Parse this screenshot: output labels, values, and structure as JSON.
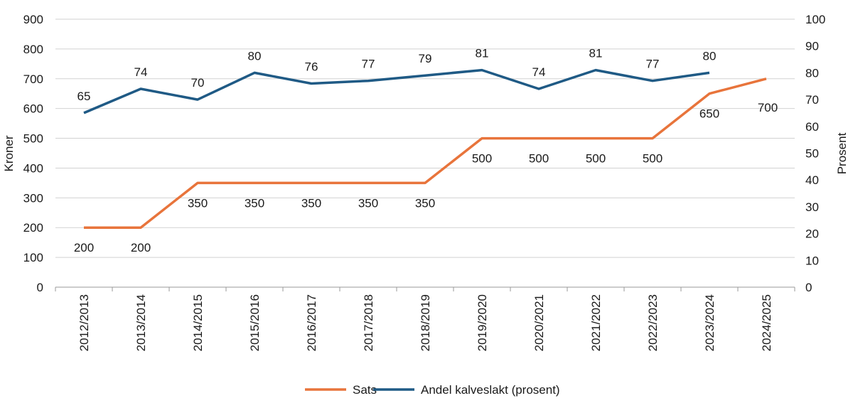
{
  "chart_data": {
    "type": "line",
    "title": "",
    "xlabel": "",
    "ylabel": "Kroner",
    "y2label": "Prosent",
    "ylim": [
      0,
      900
    ],
    "y2lim": [
      0,
      100
    ],
    "yticks": [
      "0",
      "100",
      "200",
      "300",
      "400",
      "500",
      "600",
      "700",
      "800",
      "900"
    ],
    "y2ticks": [
      "0",
      "10",
      "20",
      "30",
      "40",
      "50",
      "60",
      "70",
      "80",
      "90",
      "100"
    ],
    "grid": true,
    "legend_position": "bottom-center",
    "categories": [
      "2012/2013",
      "2013/2014",
      "2014/2015",
      "2015/2016",
      "2016/2017",
      "2017/2018",
      "2018/2019",
      "2019/2020",
      "2020/2021",
      "2021/2022",
      "2022/2023",
      "2023/2024",
      "2024/2025"
    ],
    "series": [
      {
        "name": "Sats",
        "axis": "left",
        "color": "#e8743b",
        "values": [
          200,
          200,
          350,
          350,
          350,
          350,
          350,
          500,
          500,
          500,
          500,
          650,
          700
        ],
        "labels": [
          "200",
          "200",
          "350",
          "350",
          "350",
          "350",
          "350",
          "500",
          "500",
          "500",
          "500",
          "650",
          "700"
        ]
      },
      {
        "name": "Andel kalveslakt (prosent)",
        "axis": "right",
        "color": "#1f5a85",
        "values": [
          65,
          74,
          70,
          80,
          76,
          77,
          79,
          81,
          74,
          81,
          77,
          80,
          null
        ],
        "labels": [
          "65",
          "74",
          "70",
          "80",
          "76",
          "77",
          "79",
          "81",
          "74",
          "81",
          "77",
          "80",
          null
        ]
      }
    ]
  }
}
